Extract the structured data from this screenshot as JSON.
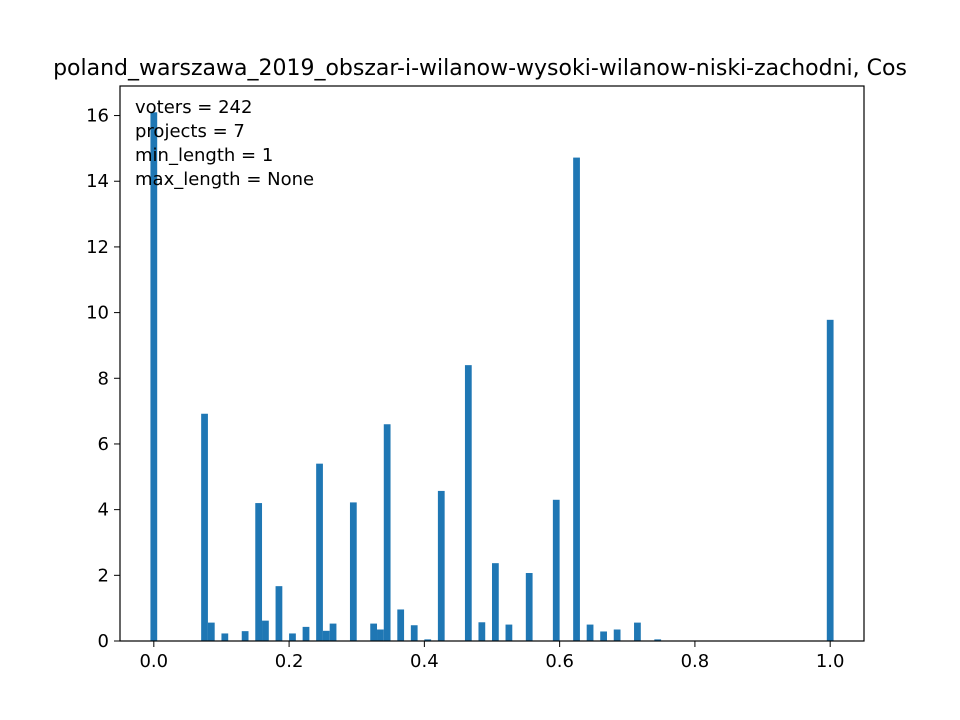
{
  "chart_data": {
    "type": "bar",
    "title": "poland_warszawa_2019_obszar-i-wilanow-wysoki-wilanow-niski-zachodni, Cos",
    "xlabel": "",
    "ylabel": "",
    "xlim": [
      -0.05,
      1.05
    ],
    "ylim": [
      0,
      16.9
    ],
    "x_ticks": [
      0.0,
      0.2,
      0.4,
      0.6,
      0.8,
      1.0
    ],
    "x_tick_labels": [
      "0.0",
      "0.2",
      "0.4",
      "0.6",
      "0.8",
      "1.0"
    ],
    "y_ticks": [
      0,
      2,
      4,
      6,
      8,
      10,
      12,
      14,
      16
    ],
    "y_tick_labels": [
      "0",
      "2",
      "4",
      "6",
      "8",
      "10",
      "12",
      "14",
      "16"
    ],
    "bin_width": 0.01,
    "color": "#1f77b4",
    "annotations": [
      "voters = 242",
      "projects = 7",
      "min_length = 1",
      "max_length = None"
    ],
    "bins": [
      {
        "x": 0.0,
        "value": 16.1
      },
      {
        "x": 0.075,
        "value": 6.92
      },
      {
        "x": 0.085,
        "value": 0.56
      },
      {
        "x": 0.105,
        "value": 0.23
      },
      {
        "x": 0.135,
        "value": 0.3
      },
      {
        "x": 0.155,
        "value": 4.2
      },
      {
        "x": 0.165,
        "value": 0.62
      },
      {
        "x": 0.185,
        "value": 1.67
      },
      {
        "x": 0.205,
        "value": 0.23
      },
      {
        "x": 0.225,
        "value": 0.43
      },
      {
        "x": 0.245,
        "value": 5.4
      },
      {
        "x": 0.255,
        "value": 0.31
      },
      {
        "x": 0.265,
        "value": 0.53
      },
      {
        "x": 0.295,
        "value": 4.22
      },
      {
        "x": 0.325,
        "value": 0.53
      },
      {
        "x": 0.335,
        "value": 0.35
      },
      {
        "x": 0.345,
        "value": 6.6
      },
      {
        "x": 0.365,
        "value": 0.96
      },
      {
        "x": 0.385,
        "value": 0.48
      },
      {
        "x": 0.405,
        "value": 0.05
      },
      {
        "x": 0.425,
        "value": 4.57
      },
      {
        "x": 0.465,
        "value": 8.4
      },
      {
        "x": 0.485,
        "value": 0.57
      },
      {
        "x": 0.505,
        "value": 2.37
      },
      {
        "x": 0.525,
        "value": 0.5
      },
      {
        "x": 0.555,
        "value": 2.07
      },
      {
        "x": 0.595,
        "value": 4.3
      },
      {
        "x": 0.625,
        "value": 14.72
      },
      {
        "x": 0.645,
        "value": 0.5
      },
      {
        "x": 0.665,
        "value": 0.29
      },
      {
        "x": 0.685,
        "value": 0.35
      },
      {
        "x": 0.715,
        "value": 0.56
      },
      {
        "x": 0.745,
        "value": 0.05
      },
      {
        "x": 1.0,
        "value": 9.78
      }
    ]
  }
}
